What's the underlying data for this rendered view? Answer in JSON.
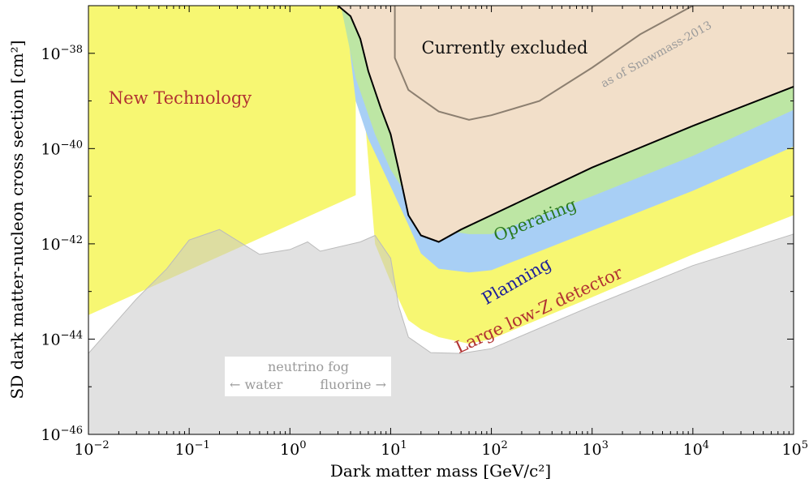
{
  "chart_data": {
    "type": "area",
    "title": "",
    "xlabel": "Dark matter mass [GeV/c²]",
    "ylabel": "SD dark matter-nucleon cross section [cm²]",
    "x_scale": "log",
    "y_scale": "log",
    "xlim": [
      0.01,
      100000
    ],
    "ylim": [
      1e-46,
      1e-37
    ],
    "grid": false,
    "x_ticks": [
      {
        "base": "10",
        "exp": "−2"
      },
      {
        "base": "10",
        "exp": "−1"
      },
      {
        "base": "10",
        "exp": "0"
      },
      {
        "base": "10",
        "exp": "1"
      },
      {
        "base": "10",
        "exp": "2"
      },
      {
        "base": "10",
        "exp": "3"
      },
      {
        "base": "10",
        "exp": "4"
      },
      {
        "base": "10",
        "exp": "5"
      }
    ],
    "y_ticks": [
      {
        "base": "10",
        "exp": "−46"
      },
      {
        "base": "10",
        "exp": "−44"
      },
      {
        "base": "10",
        "exp": "−42"
      },
      {
        "base": "10",
        "exp": "−40"
      },
      {
        "base": "10",
        "exp": "−38"
      }
    ],
    "series": [
      {
        "name": "New Technology",
        "color": "#f7f772",
        "lower_boundary": [
          [
            0.01,
            3.2e-44
          ],
          [
            4.5,
            1.05e-41
          ],
          [
            4.5,
            1e-37
          ]
        ]
      },
      {
        "name": "Large low-Z detector",
        "color": "#f7f772",
        "lower_boundary": [
          [
            4.5,
            1e-37
          ],
          [
            7,
            1e-42
          ],
          [
            10,
            1.6e-43
          ],
          [
            15,
            2.5e-44
          ],
          [
            20,
            1.6e-44
          ],
          [
            30,
            1.1e-44
          ],
          [
            60,
            8e-45
          ],
          [
            100,
            1e-44
          ],
          [
            1000,
            7.6e-44
          ],
          [
            10000,
            6e-43
          ],
          [
            100000,
            4e-42
          ]
        ]
      },
      {
        "name": "Planning",
        "color": "#a8cff5",
        "lower_boundary": [
          [
            3.5,
            1e-37
          ],
          [
            4.5,
            1e-39
          ],
          [
            6,
            1.6e-40
          ],
          [
            10,
            1.6e-41
          ],
          [
            15,
            2.5e-42
          ],
          [
            20,
            6.3e-43
          ],
          [
            30,
            3e-43
          ],
          [
            60,
            2.5e-43
          ],
          [
            100,
            2.8e-43
          ],
          [
            1000,
            1.9e-42
          ],
          [
            10000,
            1.3e-41
          ],
          [
            100000,
            1.1e-40
          ]
        ]
      },
      {
        "name": "Operating",
        "color": "#bde6a4",
        "lower_boundary": [
          [
            3.2,
            1e-37
          ],
          [
            4.5,
            3e-39
          ],
          [
            7,
            2e-40
          ],
          [
            10,
            3.6e-41
          ],
          [
            20,
            3.6e-42
          ],
          [
            30,
            2e-42
          ],
          [
            60,
            1.6e-42
          ],
          [
            100,
            1.6e-42
          ],
          [
            1000,
            1e-41
          ],
          [
            10000,
            7e-41
          ],
          [
            100000,
            6.5e-40
          ]
        ]
      },
      {
        "name": "Currently excluded",
        "color": "#f2dfc9",
        "boundary_color": "#000000",
        "lower_boundary": [
          [
            3,
            1e-37
          ],
          [
            4,
            6e-38
          ],
          [
            5,
            2e-38
          ],
          [
            6,
            4.2e-39
          ],
          [
            8,
            7e-40
          ],
          [
            10,
            2e-40
          ],
          [
            12,
            3.6e-41
          ],
          [
            15,
            4e-42
          ],
          [
            20,
            1.5e-42
          ],
          [
            30,
            1.1e-42
          ],
          [
            50,
            2e-42
          ],
          [
            100,
            4e-42
          ],
          [
            1000,
            4e-41
          ],
          [
            10000,
            3e-40
          ],
          [
            100000,
            2e-39
          ]
        ]
      },
      {
        "name": "as of Snowmass-2013",
        "color": "#8c7f70",
        "points": [
          [
            11,
            1e-37
          ],
          [
            11,
            8e-39
          ],
          [
            15,
            1.7e-39
          ],
          [
            30,
            6e-40
          ],
          [
            60,
            4e-40
          ],
          [
            100,
            5e-40
          ],
          [
            300,
            1e-39
          ],
          [
            1000,
            5e-39
          ],
          [
            3000,
            2.5e-38
          ],
          [
            10000,
            1e-37
          ]
        ]
      },
      {
        "name": "neutrino fog",
        "color": "#c8c8c8",
        "upper_boundary": [
          [
            0.01,
            5e-45
          ],
          [
            0.03,
            7e-44
          ],
          [
            0.06,
            3e-43
          ],
          [
            0.1,
            1.2e-42
          ],
          [
            0.2,
            2e-42
          ],
          [
            0.5,
            6e-43
          ],
          [
            1,
            7.6e-43
          ],
          [
            1.5,
            1.1e-42
          ],
          [
            2,
            7e-43
          ],
          [
            5,
            1.1e-42
          ],
          [
            7,
            1.5e-42
          ],
          [
            10,
            5e-43
          ],
          [
            12,
            5e-44
          ],
          [
            15,
            1.1e-44
          ],
          [
            25,
            5.2e-45
          ],
          [
            50,
            5e-45
          ],
          [
            100,
            6.3e-45
          ],
          [
            1000,
            5e-44
          ],
          [
            10000,
            3.5e-43
          ],
          [
            100000,
            1.6e-42
          ]
        ]
      }
    ],
    "annotations": {
      "new_technology": "New Technology",
      "currently_excluded": "Currently excluded",
      "snowmass": "as of Snowmass-2013",
      "operating": "Operating",
      "planning": "Planning",
      "large_low_z": "Large low-Z detector",
      "fog_title": "neutrino fog",
      "fog_left": "← water",
      "fog_right": "fluorine →"
    },
    "label_colors": {
      "new_technology": "#b13232",
      "currently_excluded": "#111111",
      "snowmass": "#9a9a9a",
      "operating": "#2a7a20",
      "planning": "#1c1f9a",
      "large_low_z": "#b13232",
      "fog": "#9a9a9a"
    }
  }
}
